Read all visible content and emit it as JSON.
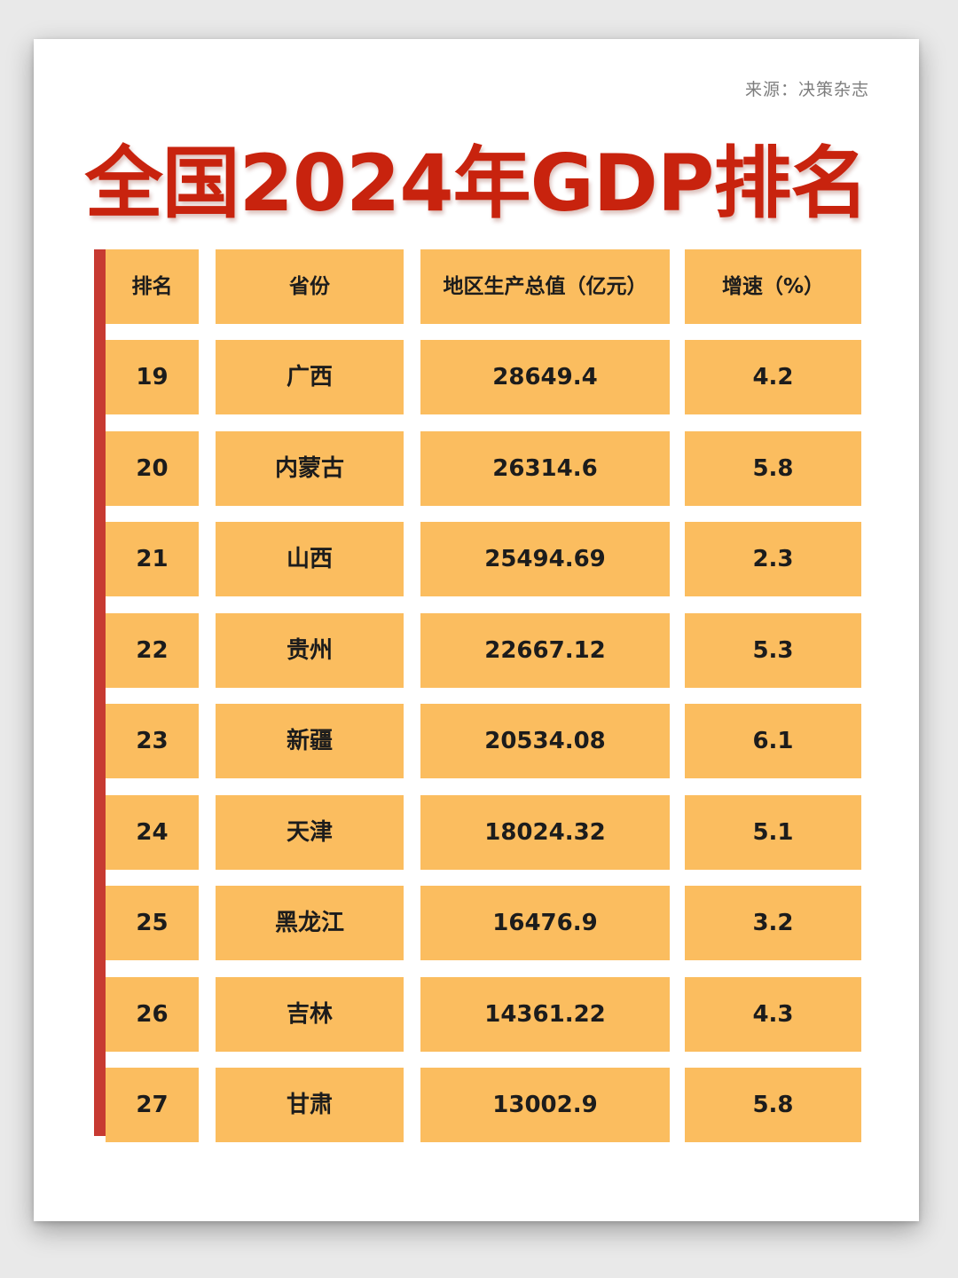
{
  "source": "来源：决策杂志",
  "title": "全国2024年GDP排名",
  "colors": {
    "title": "#c8230e",
    "cell": "#fbbd5f",
    "accent_bar": "#c73a32"
  },
  "chart_data": {
    "type": "table",
    "columns": [
      "排名",
      "省份",
      "地区生产总值（亿元）",
      "增速（%）"
    ],
    "rows": [
      {
        "rank": "19",
        "province": "广西",
        "gdp": "28649.4",
        "growth": "4.2"
      },
      {
        "rank": "20",
        "province": "内蒙古",
        "gdp": "26314.6",
        "growth": "5.8"
      },
      {
        "rank": "21",
        "province": "山西",
        "gdp": "25494.69",
        "growth": "2.3"
      },
      {
        "rank": "22",
        "province": "贵州",
        "gdp": "22667.12",
        "growth": "5.3"
      },
      {
        "rank": "23",
        "province": "新疆",
        "gdp": "20534.08",
        "growth": "6.1"
      },
      {
        "rank": "24",
        "province": "天津",
        "gdp": "18024.32",
        "growth": "5.1"
      },
      {
        "rank": "25",
        "province": "黑龙江",
        "gdp": "16476.9",
        "growth": "3.2"
      },
      {
        "rank": "26",
        "province": "吉林",
        "gdp": "14361.22",
        "growth": "4.3"
      },
      {
        "rank": "27",
        "province": "甘肃",
        "gdp": "13002.9",
        "growth": "5.8"
      }
    ]
  }
}
